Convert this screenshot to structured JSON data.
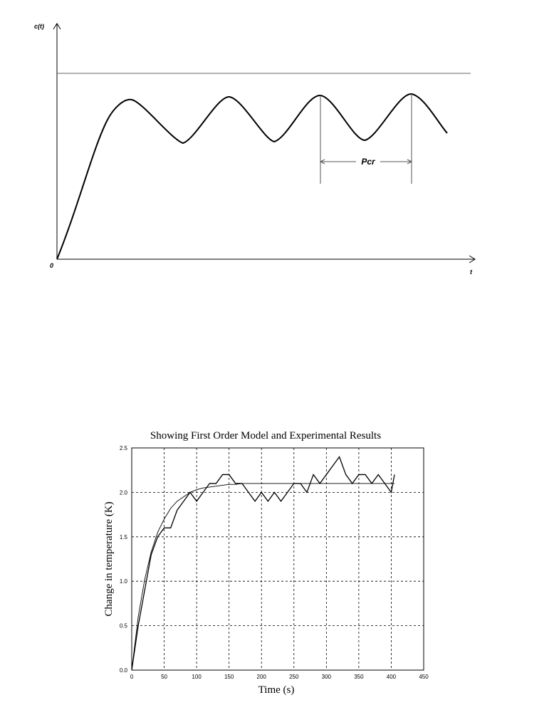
{
  "diagram": {
    "y_label": "c(t)",
    "x_label": "t",
    "origin_label": "0",
    "period_label": "Pcr"
  },
  "chart_data": {
    "type": "line",
    "title": "Showing First Order Model and Experimental Results",
    "x_label": "Time (s)",
    "y_label": "Change in temperature (K)",
    "x": [
      0,
      10,
      20,
      30,
      40,
      50,
      60,
      70,
      80,
      90,
      100,
      110,
      120,
      130,
      140,
      150,
      160,
      170,
      180,
      190,
      200,
      210,
      220,
      230,
      240,
      250,
      260,
      270,
      280,
      290,
      300,
      310,
      320,
      330,
      340,
      350,
      360,
      370,
      380,
      390,
      400,
      405
    ],
    "series": [
      {
        "color": "#000000",
        "values": [
          0,
          0.5,
          0.9,
          1.3,
          1.5,
          1.6,
          1.6,
          1.8,
          1.9,
          2.0,
          1.9,
          2.0,
          2.1,
          2.1,
          2.2,
          2.2,
          2.1,
          2.1,
          2.0,
          1.9,
          2.0,
          1.9,
          2.0,
          1.9,
          2.0,
          2.1,
          2.1,
          2.0,
          2.2,
          2.1,
          2.2,
          2.3,
          2.4,
          2.2,
          2.1,
          2.2,
          2.2,
          2.1,
          2.2,
          2.1,
          2.0,
          2.2
        ]
      },
      {
        "color": "#000000",
        "values": [
          0,
          0.6,
          1.02,
          1.33,
          1.55,
          1.7,
          1.82,
          1.9,
          1.95,
          2.0,
          2.03,
          2.05,
          2.06,
          2.07,
          2.08,
          2.09,
          2.09,
          2.1,
          2.1,
          2.1,
          2.1,
          2.1,
          2.1,
          2.1,
          2.1,
          2.1,
          2.1,
          2.1,
          2.1,
          2.1,
          2.1,
          2.1,
          2.1,
          2.1,
          2.1,
          2.1,
          2.1,
          2.1,
          2.1,
          2.1,
          2.1,
          2.1
        ]
      }
    ],
    "xlim": [
      0,
      450
    ],
    "xticks": [
      0,
      50,
      100,
      150,
      200,
      250,
      300,
      350,
      400,
      450
    ],
    "ylim": [
      0,
      2.5
    ],
    "yticks": [
      {
        "value": 0,
        "label": "0.0"
      },
      0.5,
      {
        "value": 1,
        "label": "1.0"
      },
      1.5,
      {
        "value": 2,
        "label": "2.0"
      },
      2.5
    ],
    "grid": true
  }
}
